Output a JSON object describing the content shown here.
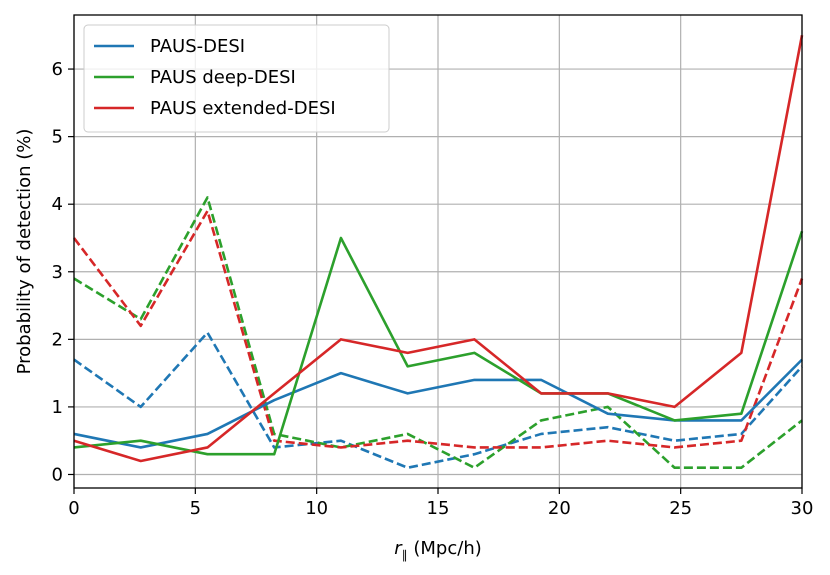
{
  "chart_data": {
    "type": "line",
    "xlabel_symbol": "r",
    "xlabel_subscript": "∥",
    "xlabel_unit": "(Mpc/h)",
    "ylabel": "Probability of detection (%)",
    "xlim": [
      0,
      30
    ],
    "ylim": [
      -0.2,
      6.8
    ],
    "xticks": [
      "0",
      "5",
      "10",
      "15",
      "20",
      "25",
      "30"
    ],
    "yticks": [
      "0",
      "1",
      "2",
      "3",
      "4",
      "5",
      "6"
    ],
    "xtick_values": [
      0,
      5,
      10,
      15,
      20,
      25,
      30
    ],
    "ytick_values": [
      0,
      1,
      2,
      3,
      4,
      5,
      6
    ],
    "grid": true,
    "legend_position": "upper-left",
    "x": [
      0,
      2.75,
      5.5,
      8.25,
      11,
      13.75,
      16.5,
      19.25,
      22,
      24.75,
      27.5,
      30
    ],
    "series": [
      {
        "name": "PAUS-DESI",
        "color": "#1f77b4",
        "style": "solid",
        "values": [
          0.6,
          0.4,
          0.6,
          1.1,
          1.5,
          1.2,
          1.4,
          1.4,
          0.9,
          0.8,
          0.8,
          1.7
        ]
      },
      {
        "name": "PAUS deep-DESI",
        "color": "#2ca02c",
        "style": "solid",
        "values": [
          0.4,
          0.5,
          0.3,
          0.3,
          3.5,
          1.6,
          1.8,
          1.2,
          1.2,
          0.8,
          0.9,
          3.6
        ]
      },
      {
        "name": "PAUS extended-DESI",
        "color": "#d62728",
        "style": "solid",
        "values": [
          0.5,
          0.2,
          0.4,
          1.2,
          2.0,
          1.8,
          2.0,
          1.2,
          1.2,
          1.0,
          1.8,
          6.5
        ]
      },
      {
        "name": "",
        "color": "#1f77b4",
        "style": "dashed",
        "values": [
          1.7,
          1.0,
          2.1,
          0.4,
          0.5,
          0.1,
          0.3,
          0.6,
          0.7,
          0.5,
          0.6,
          1.6
        ]
      },
      {
        "name": "",
        "color": "#2ca02c",
        "style": "dashed",
        "values": [
          2.9,
          2.3,
          4.1,
          0.6,
          0.4,
          0.6,
          0.1,
          0.8,
          1.0,
          0.1,
          0.1,
          0.8
        ]
      },
      {
        "name": "",
        "color": "#d62728",
        "style": "dashed",
        "values": [
          3.5,
          2.2,
          3.9,
          0.5,
          0.4,
          0.5,
          0.4,
          0.4,
          0.5,
          0.4,
          0.5,
          2.9
        ]
      }
    ]
  }
}
